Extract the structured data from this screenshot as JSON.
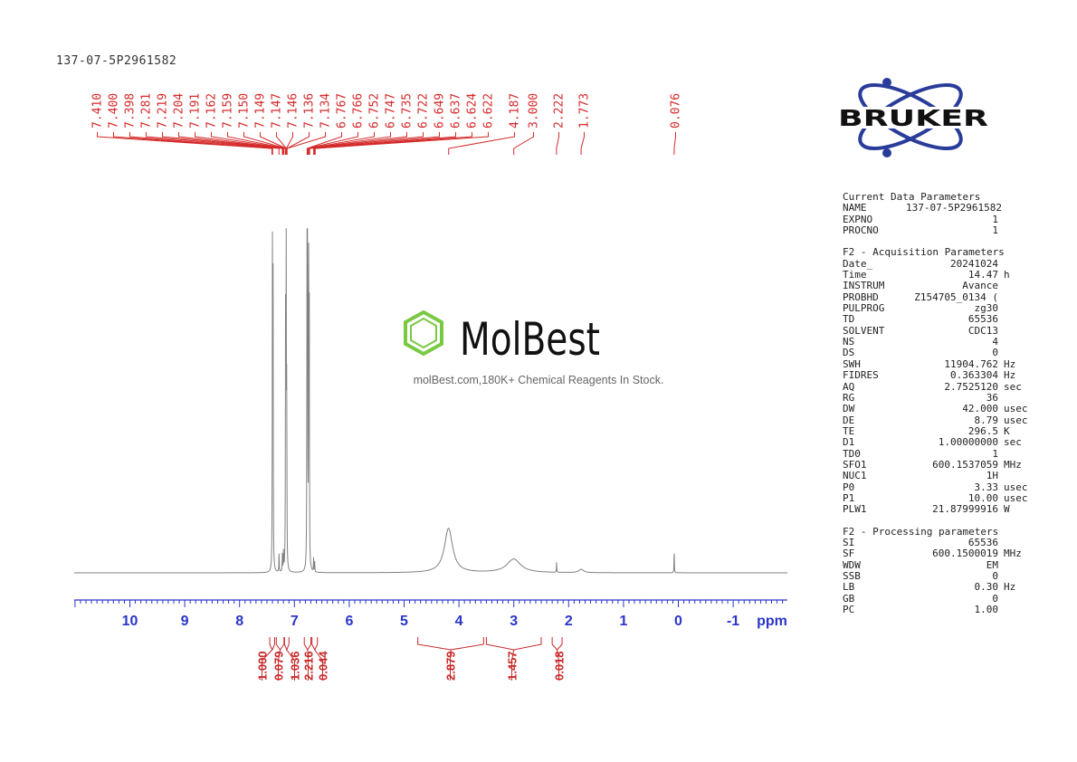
{
  "sample_id": "137-07-5P2961582",
  "colors": {
    "spectrum": "#808080",
    "peak_labels": "#d42a2a",
    "axis": "#2a36c8",
    "integrals": "#c82828",
    "bruker": "#2a3c9a",
    "molbest_green": "#7ac943"
  },
  "watermark": {
    "brand": "MolBest",
    "tagline": "molBest.com,180K+ Chemical Reagents In Stock."
  },
  "logo": {
    "text": "BRUKER"
  },
  "chart_data": {
    "type": "line",
    "title": "",
    "xlabel": "ppm",
    "xlim": [
      11.0,
      -2.0
    ],
    "x_reversed": true,
    "x_ticks": [
      10,
      9,
      8,
      7,
      6,
      5,
      4,
      3,
      2,
      1,
      0,
      -1
    ],
    "x_tick_labels": [
      "10",
      "9",
      "8",
      "7",
      "6",
      "5",
      "4",
      "3",
      "2",
      "1",
      "0",
      "-1"
    ],
    "grid": false,
    "peaks": [
      {
        "ppm": 7.4,
        "height": 0.985
      },
      {
        "ppm": 7.39,
        "height": 0.95
      },
      {
        "ppm": 7.28,
        "height": 0.06
      },
      {
        "ppm": 7.22,
        "height": 0.05
      },
      {
        "ppm": 7.2,
        "height": 0.06
      },
      {
        "ppm": 7.16,
        "height": 0.9
      },
      {
        "ppm": 7.15,
        "height": 0.95
      },
      {
        "ppm": 7.14,
        "height": 0.5
      },
      {
        "ppm": 6.77,
        "height": 1.0
      },
      {
        "ppm": 6.76,
        "height": 1.0
      },
      {
        "ppm": 6.74,
        "height": 0.9
      },
      {
        "ppm": 6.73,
        "height": 0.85
      },
      {
        "ppm": 6.65,
        "height": 0.04
      },
      {
        "ppm": 6.63,
        "height": 0.03
      },
      {
        "ppm": 2.22,
        "height": 0.03
      },
      {
        "ppm": 0.076,
        "height": 0.07
      }
    ],
    "broad_peaks": [
      {
        "ppm": 4.19,
        "height": 0.13,
        "width": 0.09
      },
      {
        "ppm": 3.0,
        "height": 0.04,
        "width": 0.15
      },
      {
        "ppm": 1.77,
        "height": 0.01,
        "width": 0.05
      }
    ],
    "peak_labels": [
      "7.410",
      "7.400",
      "7.398",
      "7.281",
      "7.219",
      "7.204",
      "7.191",
      "7.162",
      "7.159",
      "7.150",
      "7.149",
      "7.147",
      "7.146",
      "7.136",
      "7.134",
      "6.767",
      "6.766",
      "6.752",
      "6.747",
      "6.735",
      "6.722",
      "6.649",
      "6.637",
      "6.624",
      "6.622",
      "4.187",
      "3.000",
      "2.222",
      "1.773",
      "0.076"
    ],
    "integrals": [
      {
        "from": 7.45,
        "to": 7.36,
        "value": "1.000"
      },
      {
        "from": 7.33,
        "to": 7.19,
        "value": "0.079"
      },
      {
        "from": 7.18,
        "to": 7.1,
        "value": "1.036"
      },
      {
        "from": 6.82,
        "to": 6.7,
        "value": "2.216"
      },
      {
        "from": 6.68,
        "to": 6.58,
        "value": "0.044"
      },
      {
        "from": 4.75,
        "to": 3.55,
        "value": "2.879"
      },
      {
        "from": 3.5,
        "to": 2.5,
        "value": "1.457"
      },
      {
        "from": 2.3,
        "to": 2.12,
        "value": "0.018"
      }
    ]
  },
  "params": {
    "sections": [
      {
        "title": "Current Data Parameters",
        "rows": [
          {
            "k": "NAME",
            "v": "137-07-5P2961582",
            "u": ""
          },
          {
            "k": "EXPNO",
            "v": "1",
            "u": ""
          },
          {
            "k": "PROCNO",
            "v": "1",
            "u": ""
          }
        ]
      },
      {
        "title": "F2 - Acquisition Parameters",
        "rows": [
          {
            "k": "Date_",
            "v": "20241024",
            "u": ""
          },
          {
            "k": "Time",
            "v": "14.47",
            "u": "h"
          },
          {
            "k": "INSTRUM",
            "v": "Avance",
            "u": ""
          },
          {
            "k": "PROBHD",
            "v": "Z154705_0134 (",
            "u": ""
          },
          {
            "k": "PULPROG",
            "v": "zg30",
            "u": ""
          },
          {
            "k": "TD",
            "v": "65536",
            "u": ""
          },
          {
            "k": "SOLVENT",
            "v": "CDC13",
            "u": ""
          },
          {
            "k": "NS",
            "v": "4",
            "u": ""
          },
          {
            "k": "DS",
            "v": "0",
            "u": ""
          },
          {
            "k": "SWH",
            "v": "11904.762",
            "u": "Hz"
          },
          {
            "k": "FIDRES",
            "v": "0.363304",
            "u": "Hz"
          },
          {
            "k": "AQ",
            "v": "2.7525120",
            "u": "sec"
          },
          {
            "k": "RG",
            "v": "36",
            "u": ""
          },
          {
            "k": "DW",
            "v": "42.000",
            "u": "usec"
          },
          {
            "k": "DE",
            "v": "8.79",
            "u": "usec"
          },
          {
            "k": "TE",
            "v": "296.5",
            "u": "K"
          },
          {
            "k": "D1",
            "v": "1.00000000",
            "u": "sec"
          },
          {
            "k": "TD0",
            "v": "1",
            "u": ""
          },
          {
            "k": "SFO1",
            "v": "600.1537059",
            "u": "MHz"
          },
          {
            "k": "NUC1",
            "v": "1H",
            "u": ""
          },
          {
            "k": "P0",
            "v": "3.33",
            "u": "usec"
          },
          {
            "k": "P1",
            "v": "10.00",
            "u": "usec"
          },
          {
            "k": "PLW1",
            "v": "21.87999916",
            "u": "W"
          }
        ]
      },
      {
        "title": "F2 - Processing parameters",
        "rows": [
          {
            "k": "SI",
            "v": "65536",
            "u": ""
          },
          {
            "k": "SF",
            "v": "600.1500019",
            "u": "MHz"
          },
          {
            "k": "WDW",
            "v": "EM",
            "u": ""
          },
          {
            "k": "SSB",
            "v": "0",
            "u": ""
          },
          {
            "k": "LB",
            "v": "0.30",
            "u": "Hz"
          },
          {
            "k": "GB",
            "v": "0",
            "u": ""
          },
          {
            "k": "PC",
            "v": "1.00",
            "u": ""
          }
        ]
      }
    ]
  }
}
